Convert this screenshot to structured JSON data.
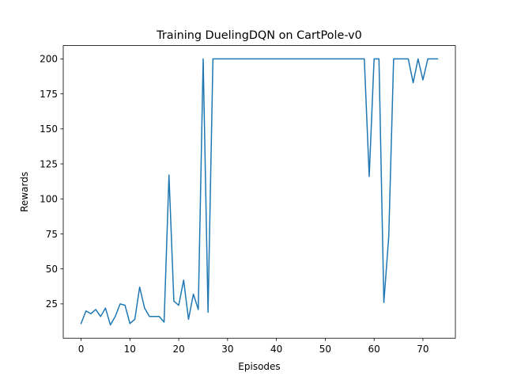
{
  "chart_data": {
    "type": "line",
    "title": "Training DuelingDQN on CartPole-v0",
    "xlabel": "Episodes",
    "ylabel": "Rewards",
    "xlim": [
      -3.65,
      76.65
    ],
    "ylim": [
      0.5,
      209.5
    ],
    "xticks": [
      0,
      10,
      20,
      30,
      40,
      50,
      60,
      70
    ],
    "yticks": [
      25,
      50,
      75,
      100,
      125,
      150,
      175,
      200
    ],
    "grid": false,
    "line_color": "#1f77b4",
    "series": [
      {
        "x": [
          0,
          1,
          2,
          3,
          4,
          5,
          6,
          7,
          8,
          9,
          10,
          11,
          12,
          13,
          14,
          15,
          16,
          17,
          18,
          19,
          20,
          21,
          22,
          23,
          24,
          25,
          26,
          27,
          28,
          29,
          30,
          31,
          32,
          33,
          34,
          35,
          36,
          37,
          38,
          39,
          40,
          41,
          42,
          43,
          44,
          45,
          46,
          47,
          48,
          49,
          50,
          51,
          52,
          53,
          54,
          55,
          56,
          57,
          58,
          59,
          60,
          61,
          62,
          63,
          64,
          65,
          66,
          67,
          68,
          69,
          70,
          71,
          72,
          73
        ],
        "values": [
          11,
          20,
          18,
          21,
          16,
          22,
          10,
          16,
          25,
          24,
          11,
          14,
          37,
          22,
          16,
          16,
          16,
          12,
          117,
          27,
          24,
          42,
          14,
          32,
          21,
          200,
          19,
          200,
          200,
          200,
          200,
          200,
          200,
          200,
          200,
          200,
          200,
          200,
          200,
          200,
          200,
          200,
          200,
          200,
          200,
          200,
          200,
          200,
          200,
          200,
          200,
          200,
          200,
          200,
          200,
          200,
          200,
          200,
          200,
          116,
          200,
          200,
          26,
          73,
          200,
          200,
          200,
          200,
          183,
          200,
          185,
          200,
          200,
          200
        ]
      }
    ]
  }
}
